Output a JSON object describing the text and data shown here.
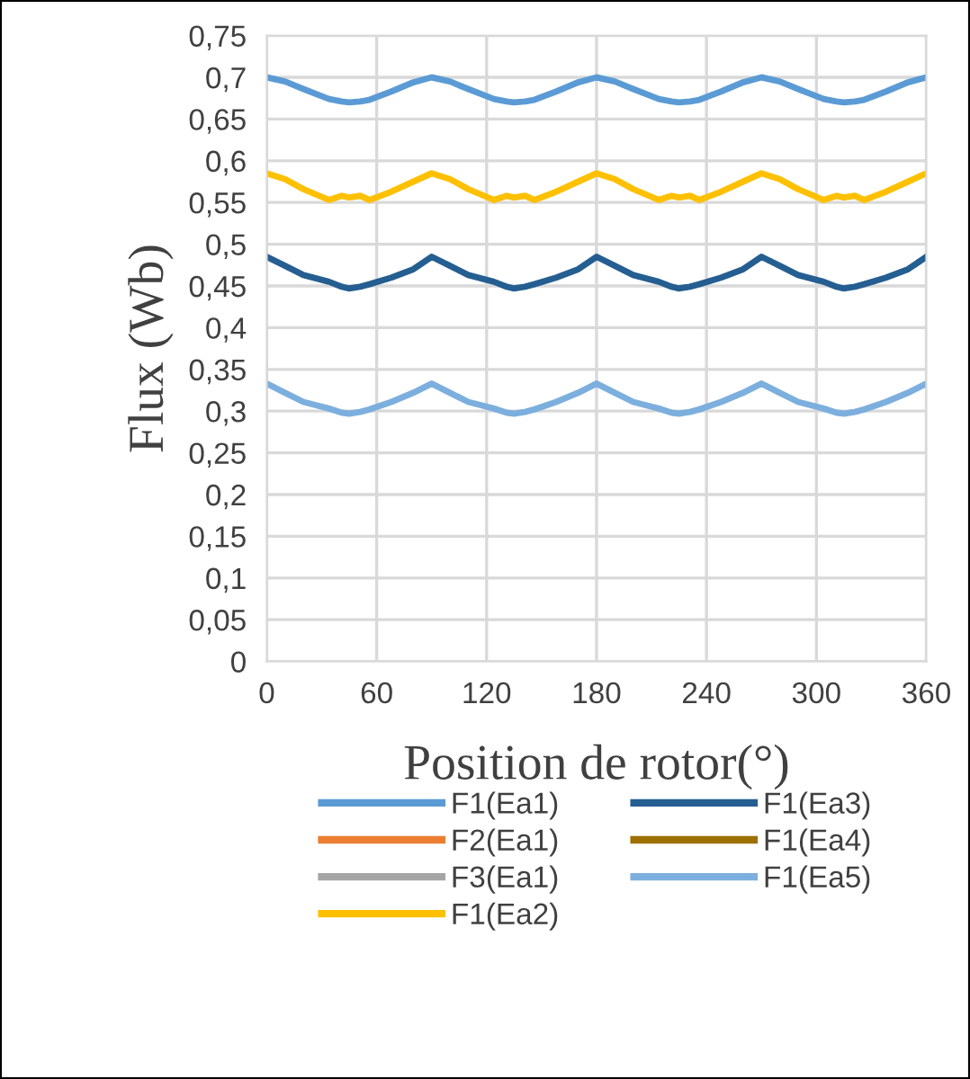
{
  "chart_data": {
    "type": "line",
    "xlabel": "Position de rotor(°)",
    "ylabel": "Flux (Wb)",
    "x": [
      0,
      10,
      20,
      34,
      41,
      45,
      51,
      56,
      68,
      80,
      90,
      100,
      110,
      124,
      131,
      135,
      141,
      146,
      158,
      170,
      180,
      190,
      200,
      214,
      221,
      225,
      231,
      236,
      248,
      260,
      270,
      280,
      290,
      304,
      311,
      315,
      321,
      326,
      338,
      350,
      360
    ],
    "series": [
      {
        "name": "F1(Ea1)",
        "color": "#5b9bd5",
        "values": [
          0.7,
          0.695,
          0.686,
          0.674,
          0.671,
          0.67,
          0.671,
          0.673,
          0.683,
          0.694,
          0.7,
          0.695,
          0.686,
          0.674,
          0.671,
          0.67,
          0.671,
          0.673,
          0.683,
          0.694,
          0.7,
          0.695,
          0.686,
          0.674,
          0.671,
          0.67,
          0.671,
          0.673,
          0.683,
          0.694,
          0.7,
          0.695,
          0.686,
          0.674,
          0.671,
          0.67,
          0.671,
          0.673,
          0.683,
          0.694,
          0.7
        ]
      },
      {
        "name": "F2(Ea1)",
        "color": "#ed7d31",
        "values": [
          null,
          null,
          null,
          null,
          null,
          null,
          null,
          null,
          null,
          null,
          null,
          null,
          null,
          null,
          null,
          null,
          null,
          null,
          null,
          null,
          null,
          null,
          null,
          null,
          null,
          null,
          null,
          null,
          null,
          null,
          null,
          null,
          null,
          null,
          null,
          null,
          null,
          null,
          null,
          null,
          null
        ]
      },
      {
        "name": "F3(Ea1)",
        "color": "#a5a5a5",
        "values": [
          null,
          null,
          null,
          null,
          null,
          null,
          null,
          null,
          null,
          null,
          null,
          null,
          null,
          null,
          null,
          null,
          null,
          null,
          null,
          null,
          null,
          null,
          null,
          null,
          null,
          null,
          null,
          null,
          null,
          null,
          null,
          null,
          null,
          null,
          null,
          null,
          null,
          null,
          null,
          null,
          null
        ]
      },
      {
        "name": "F1(Ea2)",
        "color": "#ffc000",
        "values": [
          0.585,
          0.578,
          0.566,
          0.553,
          0.558,
          0.556,
          0.558,
          0.553,
          0.563,
          0.575,
          0.585,
          0.578,
          0.566,
          0.553,
          0.558,
          0.556,
          0.558,
          0.553,
          0.563,
          0.575,
          0.585,
          0.578,
          0.566,
          0.553,
          0.558,
          0.556,
          0.558,
          0.553,
          0.563,
          0.575,
          0.585,
          0.578,
          0.566,
          0.553,
          0.558,
          0.556,
          0.558,
          0.553,
          0.563,
          0.575,
          0.585
        ]
      },
      {
        "name": "F1(Ea3)",
        "color": "#255e91",
        "values": [
          0.485,
          0.474,
          0.463,
          0.455,
          0.449,
          0.447,
          0.449,
          0.452,
          0.46,
          0.47,
          0.485,
          0.474,
          0.463,
          0.455,
          0.449,
          0.447,
          0.449,
          0.452,
          0.46,
          0.47,
          0.485,
          0.474,
          0.463,
          0.455,
          0.449,
          0.447,
          0.449,
          0.452,
          0.46,
          0.47,
          0.485,
          0.474,
          0.463,
          0.455,
          0.449,
          0.447,
          0.449,
          0.452,
          0.46,
          0.47,
          0.485
        ]
      },
      {
        "name": "F1(Ea4)",
        "color": "#9e7000",
        "values": [
          null,
          null,
          null,
          null,
          null,
          null,
          null,
          null,
          null,
          null,
          null,
          null,
          null,
          null,
          null,
          null,
          null,
          null,
          null,
          null,
          null,
          null,
          null,
          null,
          null,
          null,
          null,
          null,
          null,
          null,
          null,
          null,
          null,
          null,
          null,
          null,
          null,
          null,
          null,
          null,
          null
        ]
      },
      {
        "name": "F1(Ea5)",
        "color": "#7cafdd",
        "values": [
          0.333,
          0.322,
          0.311,
          0.303,
          0.298,
          0.297,
          0.299,
          0.302,
          0.311,
          0.322,
          0.333,
          0.322,
          0.311,
          0.303,
          0.298,
          0.297,
          0.299,
          0.302,
          0.311,
          0.322,
          0.333,
          0.322,
          0.311,
          0.303,
          0.298,
          0.297,
          0.299,
          0.302,
          0.311,
          0.322,
          0.333,
          0.322,
          0.311,
          0.303,
          0.298,
          0.297,
          0.299,
          0.302,
          0.311,
          0.322,
          0.333
        ]
      }
    ],
    "xlim": [
      0,
      360
    ],
    "xticks": [
      0,
      60,
      120,
      180,
      240,
      300,
      360
    ],
    "ylim": [
      0,
      0.75
    ],
    "yticks": [
      0,
      {
        "value": 0.05,
        "label": "0,05"
      },
      {
        "value": 0.1,
        "label": "0,1"
      },
      {
        "value": 0.15,
        "label": "0,15"
      },
      {
        "value": 0.2,
        "label": "0,2"
      },
      {
        "value": 0.25,
        "label": "0,25"
      },
      {
        "value": 0.3,
        "label": "0,3"
      },
      {
        "value": 0.35,
        "label": "0,35"
      },
      {
        "value": 0.4,
        "label": "0,4"
      },
      {
        "value": 0.45,
        "label": "0,45"
      },
      {
        "value": 0.5,
        "label": "0,5"
      },
      {
        "value": 0.55,
        "label": "0,55"
      },
      {
        "value": 0.6,
        "label": "0,6"
      },
      {
        "value": 0.65,
        "label": "0,65"
      },
      {
        "value": 0.7,
        "label": "0,7"
      },
      {
        "value": 0.75,
        "label": "0,75"
      }
    ],
    "grid": true,
    "legend": "bottom",
    "marker": "none",
    "line_style": "solid"
  }
}
